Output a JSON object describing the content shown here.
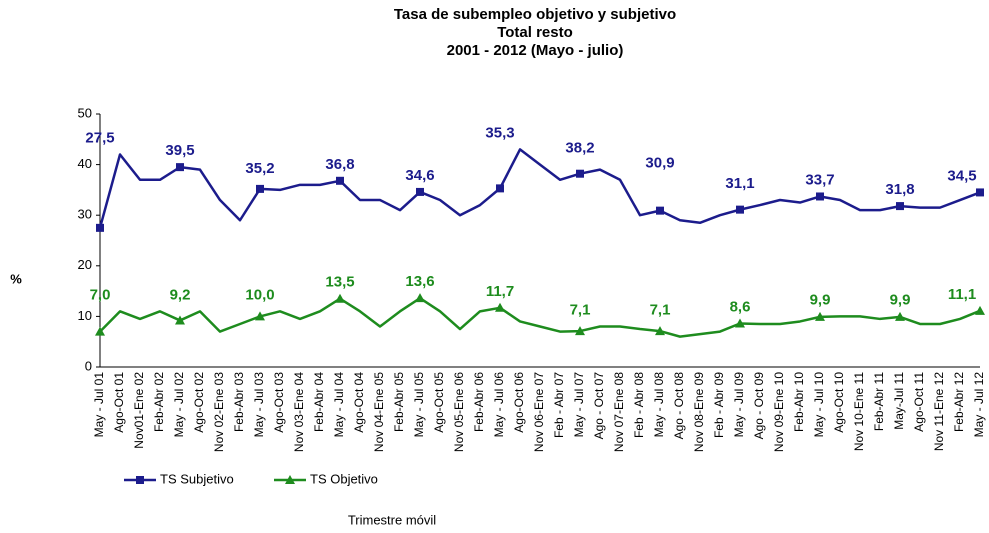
{
  "chart_data": {
    "type": "line",
    "title": [
      "Tasa de subempleo objetivo y subjetivo",
      "Total resto",
      "2001 - 2012 (Mayo - julio)"
    ],
    "y_label": "%",
    "x_label": "Trimestre móvil",
    "categories": [
      "May - Jul 01",
      "Ago-Oct 01",
      "Nov01-Ene 02",
      "Feb-Abr 02",
      "May - Jul 02",
      "Ago-Oct 02",
      "Nov 02-Ene 03",
      "Feb-Abr 03",
      "May - Jul 03",
      "Ago-Oct 03",
      "Nov 03-Ene 04",
      "Feb-Abr 04",
      "May - Jul 04",
      "Ago-Oct 04",
      "Nov 04-Ene 05",
      "Feb-Abr 05",
      "May - Jul 05",
      "Ago-Oct 05",
      "Nov 05-Ene 06",
      "Feb-Abr 06",
      "May - Jul 06",
      "Ago-Oct 06",
      "Nov 06-Ene 07",
      "Feb - Abr 07",
      "May - Jul 07",
      "Ago - Oct 07",
      "Nov 07-Ene 08",
      "Feb - Abr 08",
      "May - Jul 08",
      "Ago - Oct 08",
      "Nov 08-Ene 09",
      "Feb - Abr 09",
      "May - Jul 09",
      "Ago - Oct 09",
      "Nov 09-Ene 10",
      "Feb-Abr 10",
      "May - Jul 10",
      "Ago-Oct 10",
      "Nov 10-Ene 11",
      "Feb-Abr 11",
      "May-Jul 11",
      "Ago-Oct 11",
      "Nov 11-Ene 12",
      "Feb-Abr 12",
      "May - Jul 12"
    ],
    "series": [
      {
        "name": "TS Subjetivo",
        "color": "#1c1c8c",
        "marker": "square",
        "values": [
          27.5,
          42,
          37,
          37,
          39.5,
          39,
          33,
          29,
          35.2,
          35,
          36,
          36,
          36.8,
          33,
          33,
          31,
          34.6,
          33,
          30,
          32,
          35.3,
          43,
          40,
          37,
          38.2,
          39,
          37,
          30,
          30.9,
          29,
          28.5,
          30,
          31.1,
          32,
          33,
          32.5,
          33.7,
          33,
          31,
          31,
          31.8,
          31.5,
          31.5,
          33,
          34.5
        ],
        "value_labels": [
          "27,5",
          null,
          null,
          null,
          "39,5",
          null,
          null,
          null,
          "35,2",
          null,
          null,
          null,
          "36,8",
          null,
          null,
          null,
          "34,6",
          null,
          null,
          null,
          "35,3",
          null,
          null,
          null,
          "38,2",
          null,
          null,
          null,
          "30,9",
          null,
          null,
          null,
          "31,1",
          null,
          null,
          null,
          "33,7",
          null,
          null,
          null,
          "31,8",
          null,
          null,
          null,
          "34,5"
        ]
      },
      {
        "name": "TS Objetivo",
        "color": "#1e8c1e",
        "marker": "triangle",
        "values": [
          7.0,
          11,
          9.5,
          11,
          9.2,
          11,
          7,
          8.5,
          10.0,
          11,
          9.5,
          11,
          13.5,
          11,
          8,
          11,
          13.6,
          11,
          7.5,
          11,
          11.7,
          9,
          8,
          7,
          7.1,
          8,
          8,
          7.5,
          7.1,
          6,
          6.5,
          7,
          8.6,
          8.5,
          8.5,
          9,
          9.9,
          10,
          10,
          9.5,
          9.9,
          8.5,
          8.5,
          9.5,
          11.1
        ],
        "value_labels": [
          "7,0",
          null,
          null,
          null,
          "9,2",
          null,
          null,
          null,
          "10,0",
          null,
          null,
          null,
          "13,5",
          null,
          null,
          null,
          "13,6",
          null,
          null,
          null,
          "11,7",
          null,
          null,
          null,
          "7,1",
          null,
          null,
          null,
          "7,1",
          null,
          null,
          null,
          "8,6",
          null,
          null,
          null,
          "9,9",
          null,
          null,
          null,
          "9,9",
          null,
          null,
          null,
          "11,1"
        ]
      }
    ],
    "ylim": [
      0,
      50
    ],
    "yticks": [
      0,
      10,
      20,
      30,
      40,
      50
    ],
    "grid": false,
    "legend": "bottom-left"
  }
}
